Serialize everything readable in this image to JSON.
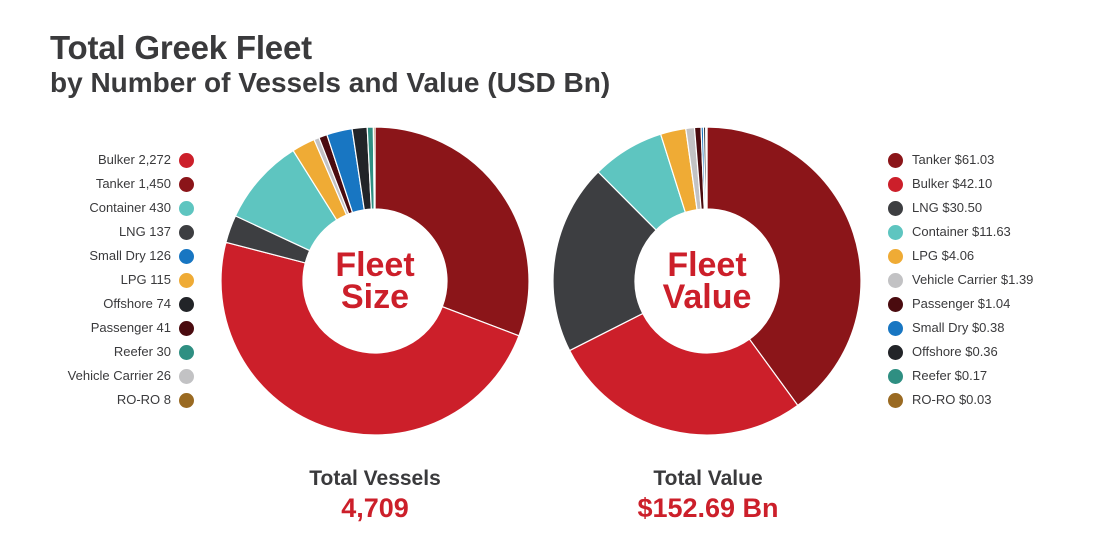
{
  "header": {
    "title": "Total Greek Fleet",
    "subtitle": "by Number of Vessels and Value (USD Bn)"
  },
  "chart_data": [
    {
      "type": "pie",
      "donut": true,
      "center_label": [
        "Fleet",
        "Size"
      ],
      "total_label": "Total Vessels",
      "total_value": "4,709",
      "legend_placement": "left",
      "categories": [
        "Bulker",
        "Tanker",
        "Container",
        "LNG",
        "Small Dry",
        "LPG",
        "Offshore",
        "Passenger",
        "Reefer",
        "Vehicle Carrier",
        "RO-RO"
      ],
      "values": [
        2272,
        1450,
        430,
        137,
        126,
        115,
        74,
        41,
        30,
        26,
        8
      ],
      "legend_labels": [
        "Bulker 2,272",
        "Tanker 1,450",
        "Container 430",
        "LNG 137",
        "Small Dry 126",
        "LPG 115",
        "Offshore 74",
        "Passenger 41",
        "Reefer 30",
        "Vehicle Carrier 26",
        "RO-RO 8"
      ],
      "colors": [
        "#cc1f2a",
        "#8b1519",
        "#5ec5c0",
        "#3d3e41",
        "#1876c2",
        "#efab35",
        "#222428",
        "#4a0b0f",
        "#2f8f82",
        "#c2c2c4",
        "#9a6a22"
      ],
      "slice_order": [
        "Tanker",
        "Bulker",
        "LNG",
        "Container",
        "LPG",
        "Vehicle Carrier",
        "Passenger",
        "Small Dry",
        "Offshore",
        "Reefer",
        "RO-RO"
      ]
    },
    {
      "type": "pie",
      "donut": true,
      "center_label": [
        "Fleet",
        "Value"
      ],
      "total_label": "Total Value",
      "total_value": "$152.69 Bn",
      "legend_placement": "right",
      "categories": [
        "Tanker",
        "Bulker",
        "LNG",
        "Container",
        "LPG",
        "Vehicle Carrier",
        "Passenger",
        "Small Dry",
        "Offshore",
        "Reefer",
        "RO-RO"
      ],
      "values": [
        61.03,
        42.1,
        30.5,
        11.63,
        4.06,
        1.39,
        1.04,
        0.38,
        0.36,
        0.17,
        0.03
      ],
      "legend_labels": [
        "Tanker $61.03",
        "Bulker $42.10",
        "LNG $30.50",
        "Container $11.63",
        "LPG $4.06",
        "Vehicle Carrier $1.39",
        "Passenger $1.04",
        "Small Dry $0.38",
        "Offshore $0.36",
        "Reefer $0.17",
        "RO-RO $0.03"
      ],
      "colors": [
        "#8b1519",
        "#cc1f2a",
        "#3d3e41",
        "#5ec5c0",
        "#efab35",
        "#c2c2c4",
        "#4a0b0f",
        "#1876c2",
        "#222428",
        "#2f8f82",
        "#9a6a22"
      ],
      "slice_order": [
        "Tanker",
        "Bulker",
        "LNG",
        "Container",
        "LPG",
        "Vehicle Carrier",
        "Passenger",
        "Small Dry",
        "Offshore",
        "Reefer",
        "RO-RO"
      ]
    }
  ]
}
